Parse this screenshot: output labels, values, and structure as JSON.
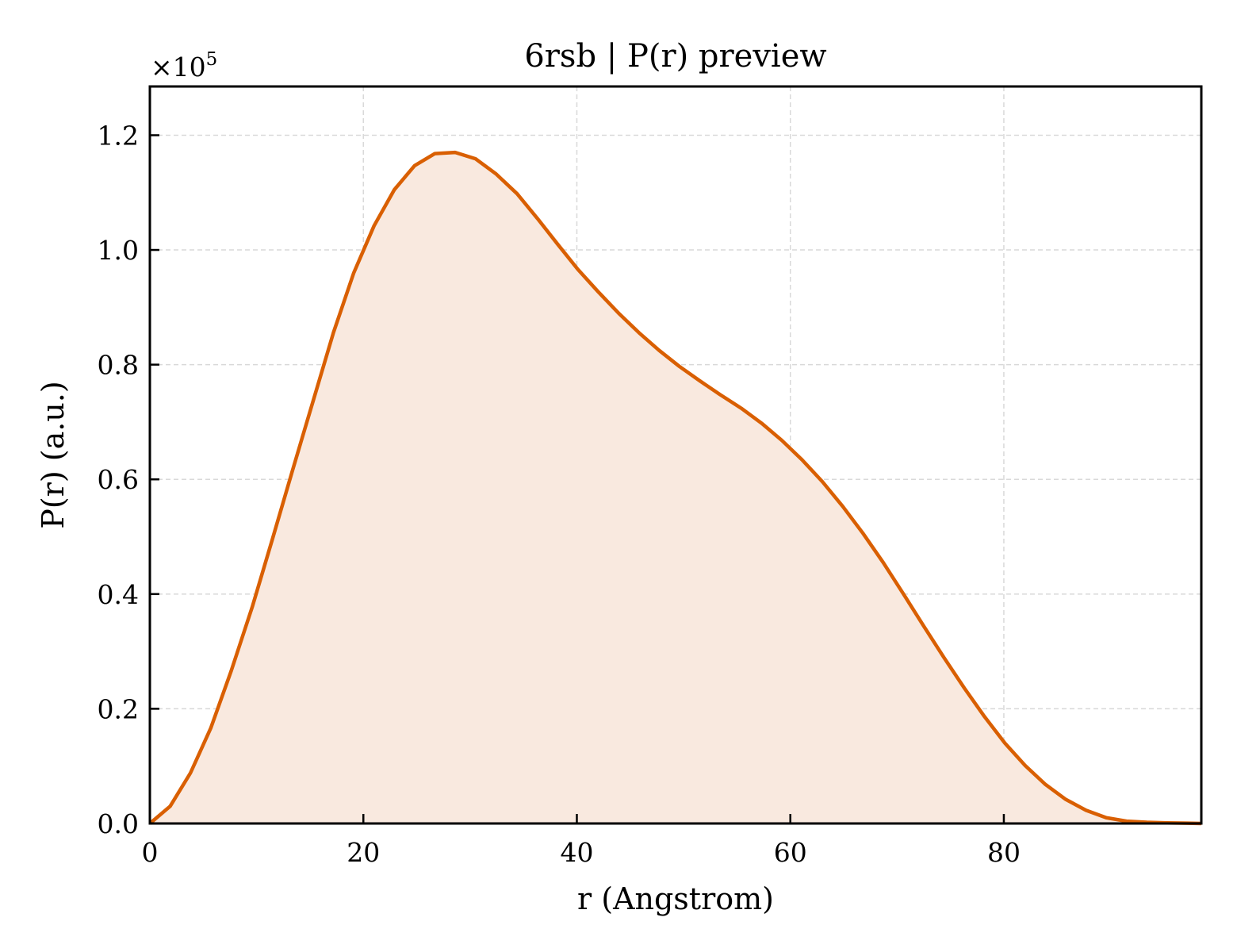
{
  "chart_data": {
    "type": "area",
    "title": "6rsb | P(r) preview",
    "xlabel": "r (Angstrom)",
    "ylabel": "P(r) (a.u.)",
    "y_multiplier_label": "×10",
    "y_multiplier_exponent": "5",
    "xlim": [
      0,
      98.5
    ],
    "ylim": [
      0,
      1.285
    ],
    "y_scale_factor": 100000,
    "xticks": [
      0,
      20,
      40,
      60,
      80
    ],
    "xtick_labels": [
      "0",
      "20",
      "40",
      "60",
      "80"
    ],
    "yticks": [
      0.0,
      0.2,
      0.4,
      0.6,
      0.8,
      1.0,
      1.2
    ],
    "ytick_labels": [
      "0.0",
      "0.2",
      "0.4",
      "0.6",
      "0.8",
      "1.0",
      "1.2"
    ],
    "grid": true,
    "colors": {
      "line": "#d95f02",
      "fill": "#f9e9df",
      "grid": "#d9d9d9"
    },
    "series": [
      {
        "x": [
          0,
          1.9,
          3.8,
          5.7,
          7.6,
          9.6,
          11.5,
          13.4,
          15.3,
          17.2,
          19.1,
          21.0,
          22.9,
          24.8,
          26.7,
          28.6,
          30.5,
          32.4,
          34.4,
          36.3,
          38.2,
          40.1,
          42.0,
          43.9,
          45.8,
          47.7,
          49.6,
          51.5,
          53.4,
          55.4,
          57.3,
          59.2,
          61.1,
          63.0,
          64.9,
          66.8,
          68.7,
          70.6,
          72.5,
          74.4,
          76.3,
          78.2,
          80.1,
          82.0,
          83.9,
          85.8,
          87.7,
          89.6,
          91.5,
          93.4,
          95.3,
          97.2,
          98.5
        ],
        "y": [
          0.0,
          0.03,
          0.088,
          0.166,
          0.265,
          0.378,
          0.497,
          0.618,
          0.737,
          0.856,
          0.96,
          1.042,
          1.105,
          1.147,
          1.168,
          1.17,
          1.159,
          1.133,
          1.098,
          1.055,
          1.01,
          0.966,
          0.927,
          0.89,
          0.856,
          0.825,
          0.797,
          0.772,
          0.748,
          0.724,
          0.698,
          0.668,
          0.634,
          0.596,
          0.553,
          0.506,
          0.455,
          0.4,
          0.344,
          0.289,
          0.236,
          0.186,
          0.14,
          0.101,
          0.068,
          0.042,
          0.023,
          0.01,
          0.004,
          0.002,
          0.001,
          0.0005,
          0.0
        ]
      }
    ]
  }
}
